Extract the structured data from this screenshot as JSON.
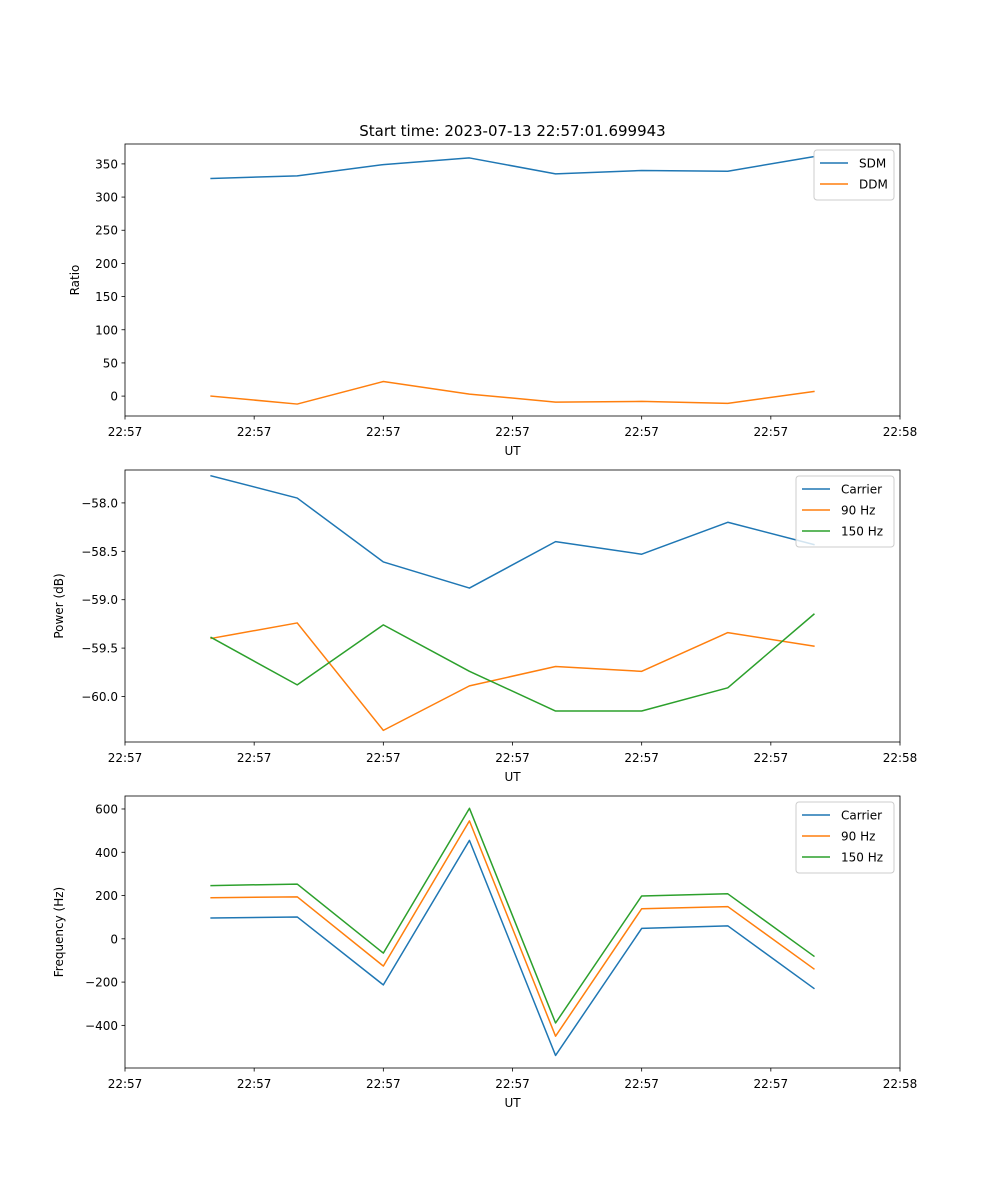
{
  "figure": {
    "title": "Start time: 2023-07-13 22:57:01.699943"
  },
  "chart_data": [
    {
      "type": "line",
      "title": "Start time: 2023-07-13 22:57:01.699943",
      "xlabel": "UT",
      "ylabel": "Ratio",
      "x": [
        1,
        2,
        3,
        4,
        5,
        6,
        7,
        8
      ],
      "xlim": [
        0,
        9
      ],
      "xticks": [
        0,
        1.5,
        3,
        4.5,
        6,
        7.5,
        9
      ],
      "xtick_labels": [
        "22:57",
        "22:57",
        "22:57",
        "22:57",
        "22:57",
        "22:57",
        "22:58"
      ],
      "ylim": [
        -30,
        380
      ],
      "yticks": [
        0,
        50,
        100,
        150,
        200,
        250,
        300,
        350
      ],
      "ytick_labels": [
        "0",
        "50",
        "100",
        "150",
        "200",
        "250",
        "300",
        "350"
      ],
      "legend_position": "top-right",
      "series": [
        {
          "name": "SDM",
          "color": "#1f77b4",
          "values": [
            328,
            332,
            349,
            359,
            335,
            340,
            339,
            361
          ]
        },
        {
          "name": "DDM",
          "color": "#ff7f0e",
          "values": [
            0,
            -12,
            22,
            3,
            -9,
            -8,
            -11,
            7
          ]
        }
      ]
    },
    {
      "type": "line",
      "title": "",
      "xlabel": "UT",
      "ylabel": "Power (dB)",
      "x": [
        1,
        2,
        3,
        4,
        5,
        6,
        7,
        8
      ],
      "xlim": [
        0,
        9
      ],
      "xticks": [
        0,
        1.5,
        3,
        4.5,
        6,
        7.5,
        9
      ],
      "xtick_labels": [
        "22:57",
        "22:57",
        "22:57",
        "22:57",
        "22:57",
        "22:57",
        "22:58"
      ],
      "ylim": [
        -60.47,
        -57.66
      ],
      "yticks": [
        -58.0,
        -58.5,
        -59.0,
        -59.5,
        -60.0
      ],
      "ytick_labels": [
        "−58.0",
        "−58.5",
        "−59.0",
        "−59.5",
        "−60.0"
      ],
      "legend_position": "top-right",
      "series": [
        {
          "name": "Carrier",
          "color": "#1f77b4",
          "values": [
            -57.72,
            -57.95,
            -58.61,
            -58.88,
            -58.4,
            -58.53,
            -58.2,
            -58.43
          ]
        },
        {
          "name": "90 Hz",
          "color": "#ff7f0e",
          "values": [
            -59.4,
            -59.24,
            -60.35,
            -59.89,
            -59.69,
            -59.74,
            -59.34,
            -59.48
          ]
        },
        {
          "name": "150 Hz",
          "color": "#2ca02c",
          "values": [
            -59.39,
            -59.88,
            -59.26,
            -59.74,
            -60.15,
            -60.15,
            -59.91,
            -59.15
          ]
        }
      ]
    },
    {
      "type": "line",
      "title": "",
      "xlabel": "UT",
      "ylabel": "Frequency (Hz)",
      "x": [
        1,
        2,
        3,
        4,
        5,
        6,
        7,
        8
      ],
      "xlim": [
        0,
        9
      ],
      "xticks": [
        0,
        1.5,
        3,
        4.5,
        6,
        7.5,
        9
      ],
      "xtick_labels": [
        "22:57",
        "22:57",
        "22:57",
        "22:57",
        "22:57",
        "22:57",
        "22:58"
      ],
      "ylim": [
        -597,
        660
      ],
      "yticks": [
        600,
        400,
        200,
        0,
        -200,
        -400
      ],
      "ytick_labels": [
        "600",
        "400",
        "200",
        "0",
        "−200",
        "−400"
      ],
      "legend_position": "top-right",
      "series": [
        {
          "name": "Carrier",
          "color": "#1f77b4",
          "values": [
            96,
            101,
            -213,
            455,
            -539,
            48,
            60,
            -229
          ]
        },
        {
          "name": "90 Hz",
          "color": "#ff7f0e",
          "values": [
            190,
            194,
            -126,
            545,
            -450,
            139,
            149,
            -139
          ]
        },
        {
          "name": "150 Hz",
          "color": "#2ca02c",
          "values": [
            246,
            253,
            -66,
            603,
            -389,
            198,
            208,
            -80
          ]
        }
      ]
    }
  ]
}
